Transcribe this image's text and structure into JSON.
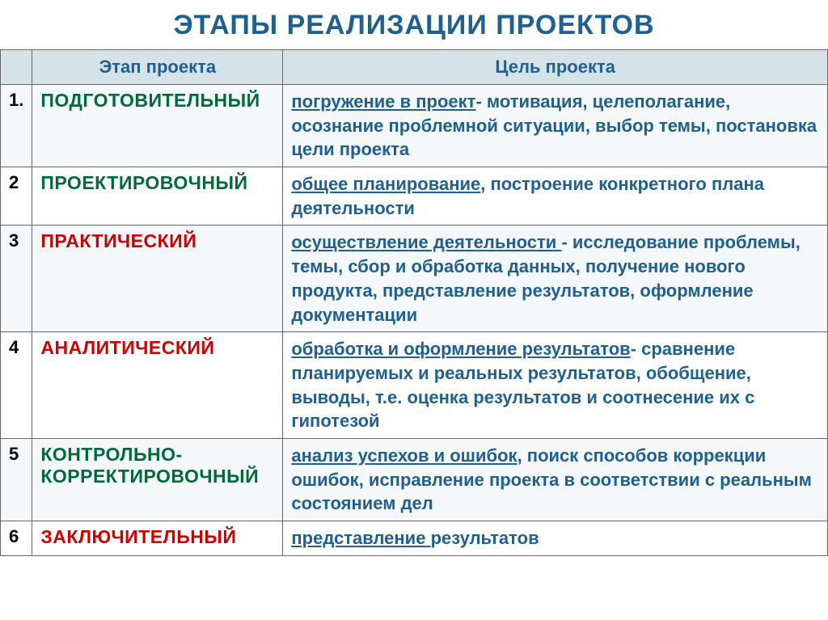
{
  "title": "ЭТАПЫ РЕАЛИЗАЦИИ ПРОЕКТОВ",
  "headers": {
    "stage": "Этап проекта",
    "goal": "Цель проекта"
  },
  "rows": [
    {
      "num": "1.",
      "stage": "ПОДГОТОВИТЕЛЬНЫЙ",
      "stage_color": "green",
      "row_bg": "light",
      "goal_lead": "погружение в проект",
      "goal_rest": "- мотивация, целеполагание, осознание проблемной ситуации, выбор темы, постановка цели проекта"
    },
    {
      "num": "2",
      "stage": "ПРОЕКТИРОВОЧНЫЙ",
      "stage_color": "green",
      "row_bg": "plain",
      "goal_lead": "общее планирование",
      "goal_rest": ", построение конкретного плана деятельности"
    },
    {
      "num": "3",
      "stage": "ПРАКТИЧЕСКИЙ",
      "stage_color": "red",
      "row_bg": "light",
      "goal_lead": "осуществление деятельности ",
      "goal_rest": "- исследование проблемы, темы, сбор и обработка данных, получение нового продукта, представление результатов, оформление документации"
    },
    {
      "num": "4",
      "stage": "АНАЛИТИЧЕСКИЙ",
      "stage_color": "red",
      "row_bg": "plain",
      "goal_lead": "обработка и оформление результатов",
      "goal_rest": "- сравнение планируемых и реальных результатов, обобщение, выводы, т.е. оценка результатов и соотнесение их с гипотезой"
    },
    {
      "num": "5",
      "stage": "КОНТРОЛЬНО-КОРРЕКТИРОВОЧНЫЙ",
      "stage_color": "green",
      "row_bg": "light",
      "goal_lead": "анализ успехов и ошибок",
      "goal_rest": ", поиск способов коррекции ошибок, исправление проекта в соответствии с реальным состоянием дел"
    },
    {
      "num": "6",
      "stage": "ЗАКЛЮЧИТЕЛЬНЫЙ",
      "stage_color": "red",
      "row_bg": "plain",
      "goal_lead": "представление ",
      "goal_rest": "результатов"
    }
  ]
}
